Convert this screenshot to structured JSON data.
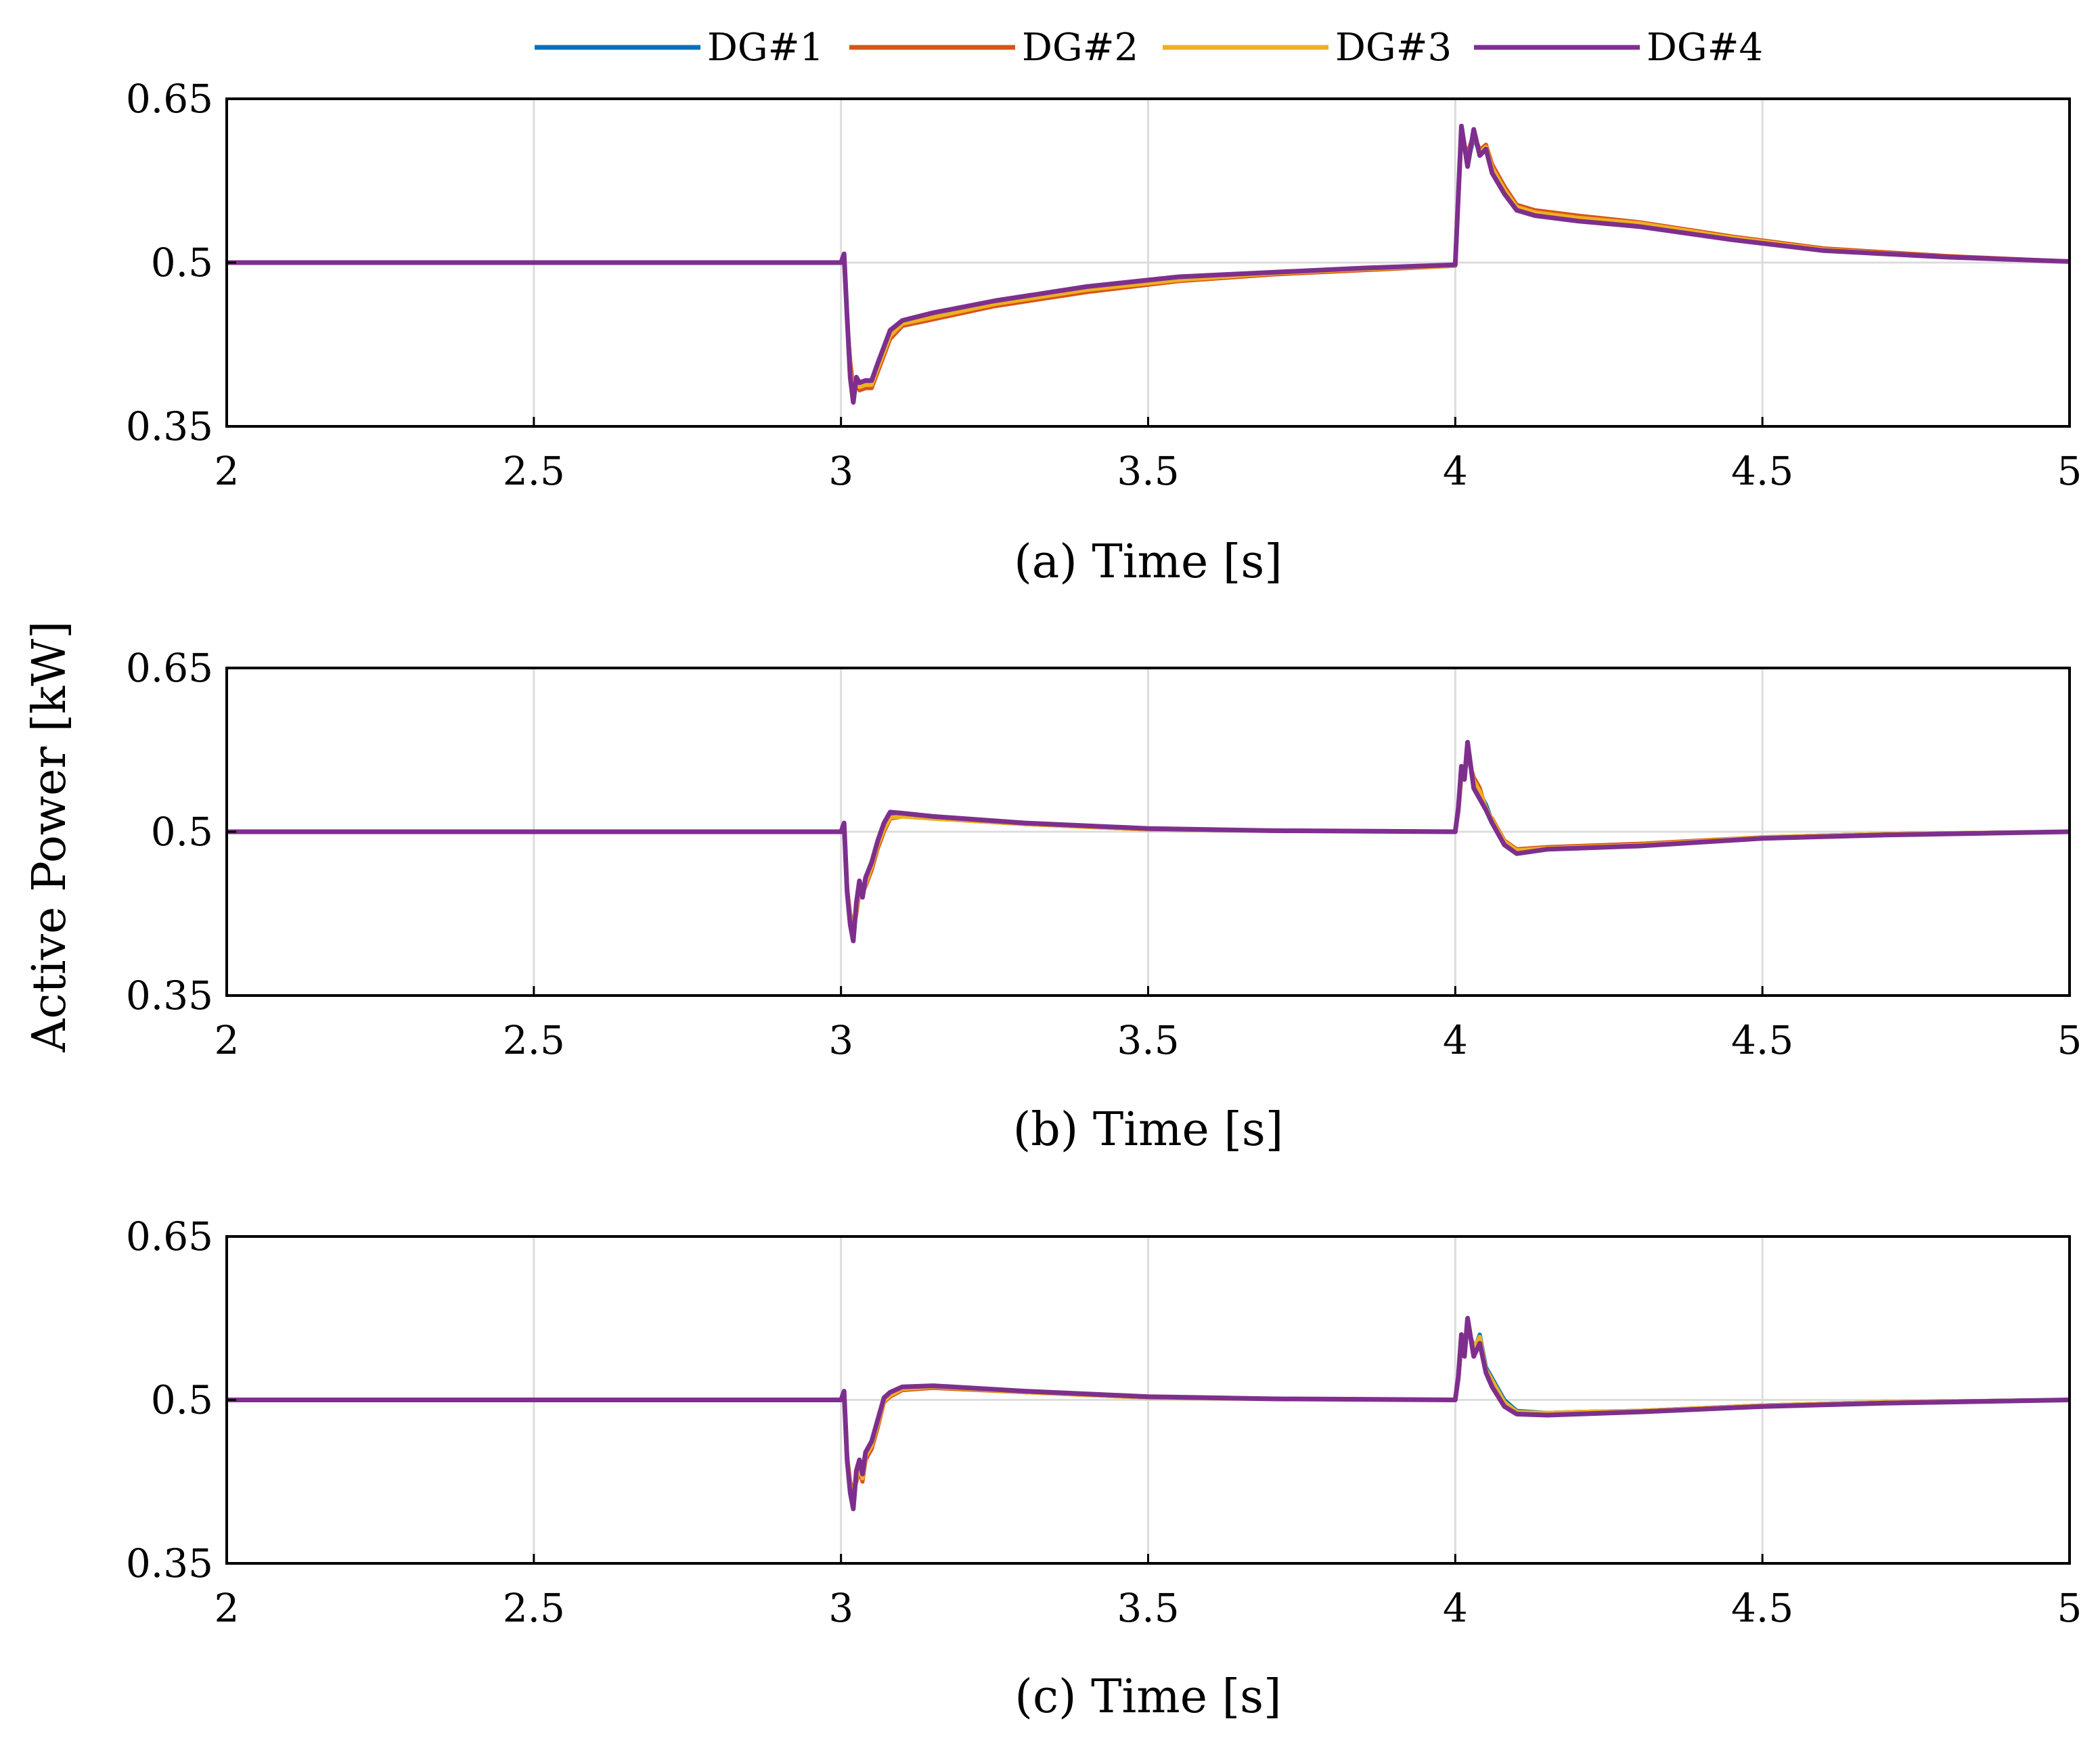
{
  "y_axis_label": "Active Power [kW]",
  "legend": [
    {
      "label": "DG#1",
      "color": "#0072BD"
    },
    {
      "label": "DG#2",
      "color": "#D95319"
    },
    {
      "label": "DG#3",
      "color": "#EDB120"
    },
    {
      "label": "DG#4",
      "color": "#7E2F8E"
    }
  ],
  "chart_data": [
    {
      "type": "line",
      "xlabel": "(a) Time [s]",
      "ylabel": "Active Power [kW]",
      "xlim": [
        2,
        5
      ],
      "ylim": [
        0.35,
        0.65
      ],
      "x_ticks": [
        "2",
        "2.5",
        "3",
        "3.5",
        "4",
        "4.5",
        "5"
      ],
      "y_ticks": [
        "0.35",
        "0.5",
        "0.65"
      ],
      "grid": true,
      "series": [
        {
          "name": "DG#1",
          "x": [
            2,
            3.0,
            3.005,
            3.01,
            3.015,
            3.02,
            3.025,
            3.03,
            3.04,
            3.05,
            3.06,
            3.08,
            3.1,
            3.15,
            3.25,
            3.4,
            3.55,
            3.7,
            3.85,
            4.0,
            4.005,
            4.01,
            4.02,
            4.03,
            4.04,
            4.05,
            4.06,
            4.08,
            4.1,
            4.13,
            4.2,
            4.3,
            4.45,
            4.6,
            4.8,
            5.0
          ],
          "y": [
            0.5,
            0.5,
            0.505,
            0.45,
            0.4,
            0.375,
            0.39,
            0.385,
            0.39,
            0.39,
            0.405,
            0.435,
            0.445,
            0.452,
            0.463,
            0.476,
            0.485,
            0.49,
            0.494,
            0.497,
            0.56,
            0.62,
            0.59,
            0.615,
            0.6,
            0.605,
            0.585,
            0.565,
            0.55,
            0.545,
            0.54,
            0.535,
            0.522,
            0.512,
            0.505,
            0.501
          ]
        },
        {
          "name": "DG#2",
          "x": [
            2,
            3.0,
            3.005,
            3.01,
            3.015,
            3.02,
            3.025,
            3.03,
            3.04,
            3.05,
            3.06,
            3.08,
            3.1,
            3.15,
            3.25,
            3.4,
            3.55,
            3.7,
            3.85,
            4.0,
            4.005,
            4.01,
            4.02,
            4.03,
            4.04,
            4.05,
            4.06,
            4.08,
            4.1,
            4.13,
            4.2,
            4.3,
            4.45,
            4.6,
            4.8,
            5.0
          ],
          "y": [
            0.5,
            0.5,
            0.503,
            0.448,
            0.41,
            0.385,
            0.39,
            0.383,
            0.385,
            0.385,
            0.4,
            0.43,
            0.442,
            0.448,
            0.46,
            0.473,
            0.483,
            0.489,
            0.493,
            0.497,
            0.558,
            0.615,
            0.6,
            0.618,
            0.603,
            0.608,
            0.59,
            0.57,
            0.553,
            0.548,
            0.543,
            0.537,
            0.524,
            0.513,
            0.506,
            0.501
          ]
        },
        {
          "name": "DG#3",
          "x": [
            2,
            3.0,
            3.005,
            3.01,
            3.015,
            3.02,
            3.025,
            3.03,
            3.04,
            3.05,
            3.06,
            3.08,
            3.1,
            3.15,
            3.25,
            3.4,
            3.55,
            3.7,
            3.85,
            4.0,
            4.005,
            4.01,
            4.02,
            4.03,
            4.04,
            4.05,
            4.06,
            4.08,
            4.1,
            4.13,
            4.2,
            4.3,
            4.45,
            4.6,
            4.8,
            5.0
          ],
          "y": [
            0.5,
            0.5,
            0.504,
            0.45,
            0.402,
            0.38,
            0.392,
            0.386,
            0.388,
            0.388,
            0.403,
            0.433,
            0.444,
            0.45,
            0.462,
            0.475,
            0.484,
            0.49,
            0.494,
            0.497,
            0.559,
            0.618,
            0.595,
            0.616,
            0.601,
            0.606,
            0.587,
            0.567,
            0.551,
            0.546,
            0.541,
            0.536,
            0.523,
            0.512,
            0.505,
            0.501
          ]
        },
        {
          "name": "DG#4",
          "x": [
            2,
            3.0,
            3.005,
            3.01,
            3.015,
            3.02,
            3.025,
            3.03,
            3.04,
            3.05,
            3.06,
            3.08,
            3.1,
            3.15,
            3.25,
            3.4,
            3.55,
            3.7,
            3.85,
            4.0,
            4.005,
            4.01,
            4.02,
            4.03,
            4.04,
            4.05,
            4.06,
            4.08,
            4.1,
            4.13,
            4.2,
            4.3,
            4.45,
            4.6,
            4.8,
            5.0
          ],
          "y": [
            0.5,
            0.5,
            0.508,
            0.45,
            0.395,
            0.372,
            0.395,
            0.39,
            0.392,
            0.392,
            0.408,
            0.438,
            0.447,
            0.454,
            0.465,
            0.478,
            0.487,
            0.491,
            0.495,
            0.498,
            0.562,
            0.625,
            0.588,
            0.622,
            0.598,
            0.604,
            0.582,
            0.563,
            0.548,
            0.543,
            0.538,
            0.533,
            0.521,
            0.511,
            0.505,
            0.501
          ]
        }
      ]
    },
    {
      "type": "line",
      "xlabel": "(b) Time [s]",
      "ylabel": "Active Power [kW]",
      "xlim": [
        2,
        5
      ],
      "ylim": [
        0.35,
        0.65
      ],
      "x_ticks": [
        "2",
        "2.5",
        "3",
        "3.5",
        "4",
        "4.5",
        "5"
      ],
      "y_ticks": [
        "0.35",
        "0.5",
        "0.65"
      ],
      "grid": true,
      "series": [
        {
          "name": "DG#1",
          "x": [
            2,
            3.0,
            3.005,
            3.01,
            3.015,
            3.02,
            3.025,
            3.03,
            3.035,
            3.04,
            3.05,
            3.06,
            3.07,
            3.08,
            3.1,
            3.15,
            3.3,
            3.5,
            3.7,
            4.0,
            4.005,
            4.01,
            4.015,
            4.02,
            4.03,
            4.04,
            4.05,
            4.06,
            4.08,
            4.1,
            4.15,
            4.2,
            4.3,
            4.5,
            4.7,
            5.0
          ],
          "y": [
            0.5,
            0.5,
            0.505,
            0.45,
            0.42,
            0.405,
            0.43,
            0.45,
            0.44,
            0.455,
            0.47,
            0.49,
            0.505,
            0.515,
            0.515,
            0.513,
            0.508,
            0.503,
            0.501,
            0.5,
            0.52,
            0.555,
            0.55,
            0.575,
            0.545,
            0.535,
            0.525,
            0.51,
            0.49,
            0.482,
            0.485,
            0.486,
            0.488,
            0.495,
            0.498,
            0.5
          ]
        },
        {
          "name": "DG#2",
          "x": [
            2,
            3.0,
            3.005,
            3.01,
            3.015,
            3.02,
            3.025,
            3.03,
            3.035,
            3.04,
            3.05,
            3.06,
            3.07,
            3.08,
            3.1,
            3.15,
            3.3,
            3.5,
            3.7,
            4.0,
            4.005,
            4.01,
            4.015,
            4.02,
            4.03,
            4.04,
            4.05,
            4.06,
            4.08,
            4.1,
            4.15,
            4.2,
            4.3,
            4.5,
            4.7,
            5.0
          ],
          "y": [
            0.5,
            0.5,
            0.503,
            0.448,
            0.425,
            0.41,
            0.425,
            0.445,
            0.445,
            0.45,
            0.465,
            0.485,
            0.5,
            0.512,
            0.514,
            0.512,
            0.507,
            0.502,
            0.501,
            0.5,
            0.518,
            0.55,
            0.555,
            0.568,
            0.55,
            0.54,
            0.52,
            0.512,
            0.492,
            0.484,
            0.486,
            0.487,
            0.489,
            0.495,
            0.498,
            0.5
          ]
        },
        {
          "name": "DG#3",
          "x": [
            2,
            3.0,
            3.005,
            3.01,
            3.015,
            3.02,
            3.025,
            3.03,
            3.035,
            3.04,
            3.05,
            3.06,
            3.07,
            3.08,
            3.1,
            3.15,
            3.3,
            3.5,
            3.7,
            4.0,
            4.005,
            4.01,
            4.015,
            4.02,
            4.03,
            4.04,
            4.05,
            4.06,
            4.08,
            4.1,
            4.15,
            4.2,
            4.3,
            4.5,
            4.7,
            5.0
          ],
          "y": [
            0.5,
            0.5,
            0.504,
            0.449,
            0.422,
            0.408,
            0.428,
            0.448,
            0.442,
            0.452,
            0.468,
            0.488,
            0.502,
            0.513,
            0.514,
            0.512,
            0.507,
            0.502,
            0.501,
            0.5,
            0.519,
            0.552,
            0.552,
            0.571,
            0.547,
            0.537,
            0.522,
            0.511,
            0.491,
            0.483,
            0.485,
            0.486,
            0.488,
            0.495,
            0.498,
            0.5
          ]
        },
        {
          "name": "DG#4",
          "x": [
            2,
            3.0,
            3.005,
            3.01,
            3.015,
            3.02,
            3.025,
            3.03,
            3.035,
            3.04,
            3.05,
            3.06,
            3.07,
            3.08,
            3.1,
            3.15,
            3.3,
            3.5,
            3.7,
            4.0,
            4.005,
            4.01,
            4.015,
            4.02,
            4.03,
            4.04,
            4.05,
            4.06,
            4.08,
            4.1,
            4.15,
            4.2,
            4.3,
            4.5,
            4.7,
            5.0
          ],
          "y": [
            0.5,
            0.5,
            0.508,
            0.445,
            0.415,
            0.4,
            0.435,
            0.455,
            0.44,
            0.458,
            0.472,
            0.492,
            0.508,
            0.518,
            0.517,
            0.514,
            0.508,
            0.503,
            0.501,
            0.5,
            0.522,
            0.56,
            0.548,
            0.582,
            0.54,
            0.53,
            0.52,
            0.508,
            0.488,
            0.48,
            0.484,
            0.485,
            0.487,
            0.494,
            0.497,
            0.5
          ]
        }
      ]
    },
    {
      "type": "line",
      "xlabel": "(c) Time [s]",
      "ylabel": "Active Power [kW]",
      "xlim": [
        2,
        5
      ],
      "ylim": [
        0.35,
        0.65
      ],
      "x_ticks": [
        "2",
        "2.5",
        "3",
        "3.5",
        "4",
        "4.5",
        "5"
      ],
      "y_ticks": [
        "0.35",
        "0.5",
        "0.65"
      ],
      "grid": true,
      "series": [
        {
          "name": "DG#1",
          "x": [
            2,
            3.0,
            3.005,
            3.01,
            3.015,
            3.02,
            3.025,
            3.03,
            3.035,
            3.04,
            3.05,
            3.06,
            3.07,
            3.08,
            3.1,
            3.15,
            3.3,
            3.5,
            3.7,
            4.0,
            4.005,
            4.01,
            4.015,
            4.02,
            4.03,
            4.04,
            4.05,
            4.06,
            4.08,
            4.1,
            4.15,
            4.2,
            4.3,
            4.5,
            4.7,
            5.0
          ],
          "y": [
            0.5,
            0.5,
            0.505,
            0.45,
            0.42,
            0.41,
            0.43,
            0.44,
            0.43,
            0.45,
            0.46,
            0.48,
            0.5,
            0.505,
            0.51,
            0.512,
            0.508,
            0.503,
            0.501,
            0.5,
            0.52,
            0.555,
            0.545,
            0.57,
            0.545,
            0.56,
            0.53,
            0.52,
            0.5,
            0.49,
            0.488,
            0.489,
            0.49,
            0.495,
            0.498,
            0.5
          ]
        },
        {
          "name": "DG#2",
          "x": [
            2,
            3.0,
            3.005,
            3.01,
            3.015,
            3.02,
            3.025,
            3.03,
            3.035,
            3.04,
            3.05,
            3.06,
            3.07,
            3.08,
            3.1,
            3.15,
            3.3,
            3.5,
            3.7,
            4.0,
            4.005,
            4.01,
            4.015,
            4.02,
            4.03,
            4.04,
            4.05,
            4.06,
            4.08,
            4.1,
            4.15,
            4.2,
            4.3,
            4.5,
            4.7,
            5.0
          ],
          "y": [
            0.5,
            0.5,
            0.503,
            0.448,
            0.425,
            0.415,
            0.425,
            0.435,
            0.425,
            0.445,
            0.455,
            0.475,
            0.498,
            0.503,
            0.509,
            0.511,
            0.507,
            0.502,
            0.501,
            0.5,
            0.518,
            0.55,
            0.55,
            0.565,
            0.55,
            0.555,
            0.525,
            0.515,
            0.495,
            0.487,
            0.488,
            0.489,
            0.49,
            0.495,
            0.498,
            0.5
          ]
        },
        {
          "name": "DG#3",
          "x": [
            2,
            3.0,
            3.005,
            3.01,
            3.015,
            3.02,
            3.025,
            3.03,
            3.035,
            3.04,
            3.05,
            3.06,
            3.07,
            3.08,
            3.1,
            3.15,
            3.3,
            3.5,
            3.7,
            4.0,
            4.005,
            4.01,
            4.015,
            4.02,
            4.03,
            4.04,
            4.05,
            4.06,
            4.08,
            4.1,
            4.15,
            4.2,
            4.3,
            4.5,
            4.7,
            5.0
          ],
          "y": [
            0.5,
            0.5,
            0.504,
            0.449,
            0.422,
            0.412,
            0.428,
            0.438,
            0.428,
            0.448,
            0.458,
            0.478,
            0.499,
            0.504,
            0.51,
            0.512,
            0.507,
            0.502,
            0.501,
            0.5,
            0.519,
            0.552,
            0.547,
            0.568,
            0.547,
            0.558,
            0.528,
            0.518,
            0.498,
            0.489,
            0.488,
            0.489,
            0.49,
            0.495,
            0.498,
            0.5
          ]
        },
        {
          "name": "DG#4",
          "x": [
            2,
            3.0,
            3.005,
            3.01,
            3.015,
            3.02,
            3.025,
            3.03,
            3.035,
            3.04,
            3.05,
            3.06,
            3.07,
            3.08,
            3.1,
            3.15,
            3.3,
            3.5,
            3.7,
            4.0,
            4.005,
            4.01,
            4.015,
            4.02,
            4.03,
            4.04,
            4.05,
            4.06,
            4.08,
            4.1,
            4.15,
            4.2,
            4.3,
            4.5,
            4.7,
            5.0
          ],
          "y": [
            0.5,
            0.5,
            0.508,
            0.445,
            0.415,
            0.4,
            0.435,
            0.445,
            0.432,
            0.452,
            0.462,
            0.482,
            0.502,
            0.507,
            0.512,
            0.513,
            0.508,
            0.503,
            0.501,
            0.5,
            0.522,
            0.56,
            0.54,
            0.575,
            0.54,
            0.552,
            0.525,
            0.512,
            0.494,
            0.487,
            0.486,
            0.487,
            0.489,
            0.494,
            0.497,
            0.5
          ]
        }
      ]
    }
  ]
}
